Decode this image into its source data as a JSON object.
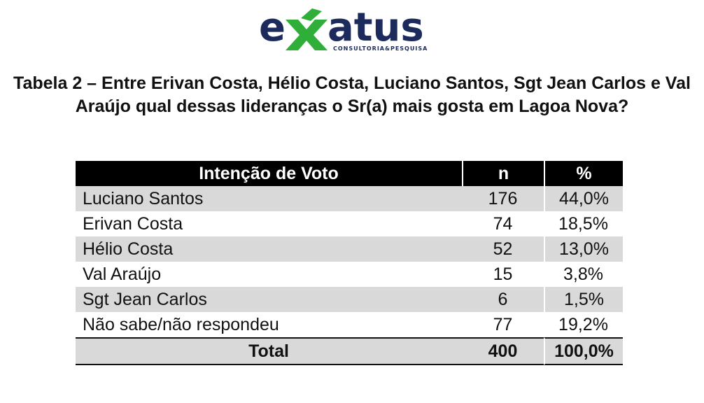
{
  "logo": {
    "brand": "exatus",
    "tagline": "CONSULTORIA&PESQUISA",
    "colors": {
      "navy": "#1d2a5c",
      "green": "#2fae3a"
    }
  },
  "title": "Tabela 2 – Entre Erivan Costa, Hélio Costa, Luciano Santos, Sgt Jean Carlos e Val Araújo qual dessas lideranças o Sr(a) mais gosta em Lagoa Nova?",
  "table": {
    "headers": {
      "label": "Intenção de Voto",
      "n": "n",
      "pct": "%"
    },
    "rows": [
      {
        "label": "Luciano Santos",
        "n": "176",
        "pct": "44,0%"
      },
      {
        "label": "Erivan Costa",
        "n": "74",
        "pct": "18,5%"
      },
      {
        "label": "Hélio Costa",
        "n": "52",
        "pct": "13,0%"
      },
      {
        "label": "Val Araújo",
        "n": "15",
        "pct": "3,8%"
      },
      {
        "label": "Sgt Jean Carlos",
        "n": "6",
        "pct": "1,5%"
      },
      {
        "label": "Não sabe/não respondeu",
        "n": "77",
        "pct": "19,2%"
      }
    ],
    "total": {
      "label": "Total",
      "n": "400",
      "pct": "100,0%"
    }
  }
}
